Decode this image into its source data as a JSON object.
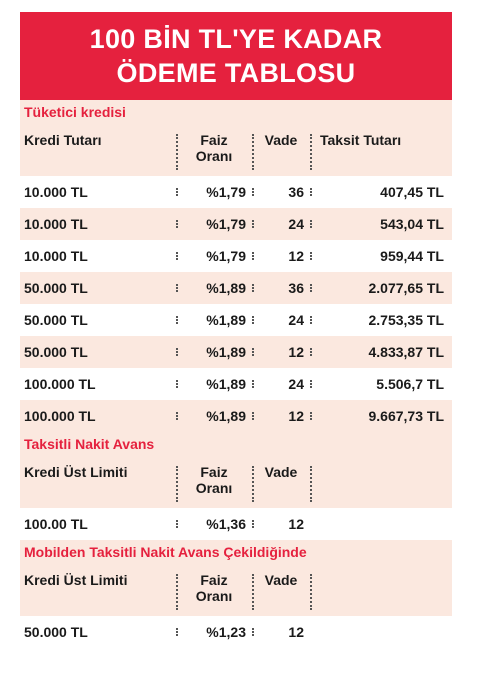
{
  "title": {
    "line1": "100 BİN TL'YE KADAR",
    "line2": "ÖDEME TABLOSU"
  },
  "colors": {
    "accent": "#e5213e",
    "band": "#fbe8df"
  },
  "sections": [
    {
      "title": "Tüketici kredisi",
      "headers": [
        "Kredi Tutarı",
        "Faiz Oranı",
        "Vade",
        "Taksit Tutarı"
      ],
      "rows": [
        [
          "10.000 TL",
          "%1,79",
          "36",
          "407,45 TL"
        ],
        [
          "10.000 TL",
          "%1,79",
          "24",
          "543,04 TL"
        ],
        [
          "10.000 TL",
          "%1,79",
          "12",
          "959,44 TL"
        ],
        [
          "50.000 TL",
          "%1,89",
          "36",
          "2.077,65 TL"
        ],
        [
          "50.000 TL",
          "%1,89",
          "24",
          "2.753,35 TL"
        ],
        [
          "50.000 TL",
          "%1,89",
          "12",
          "4.833,87 TL"
        ],
        [
          "100.000 TL",
          "%1,89",
          "24",
          "5.506,7 TL"
        ],
        [
          "100.000 TL",
          "%1,89",
          "12",
          "9.667,73 TL"
        ]
      ]
    },
    {
      "title": "Taksitli Nakit Avans",
      "headers": [
        "Kredi Üst Limiti",
        "Faiz Oranı",
        "Vade"
      ],
      "rows": [
        [
          "100.00 TL",
          "%1,36",
          "12"
        ]
      ]
    },
    {
      "title": "Mobilden Taksitli Nakit Avans Çekildiğinde",
      "headers": [
        "Kredi Üst Limiti",
        "Faiz Oranı",
        "Vade"
      ],
      "rows": [
        [
          "50.000 TL",
          "%1,23",
          "12"
        ]
      ]
    }
  ]
}
